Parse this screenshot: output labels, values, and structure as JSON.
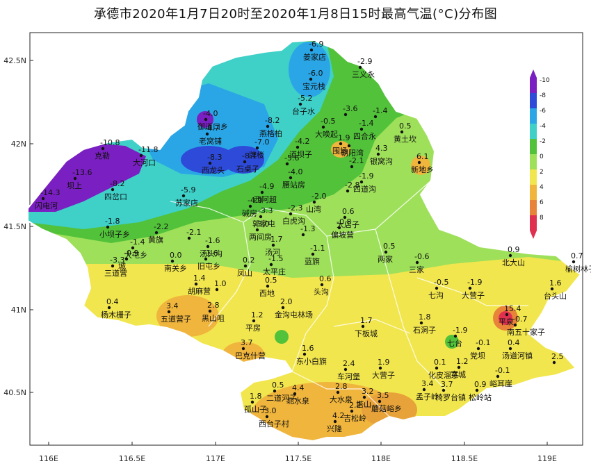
{
  "title": "承德市2020年1月7日20时至2020年1月8日15时最高气温(°C)分布图",
  "axes": {
    "lon_ticks": [
      "116E",
      "116.5E",
      "117E",
      "117.5E",
      "118E",
      "118.5E",
      "119E"
    ],
    "lat_ticks": [
      "42.5N",
      "42N",
      "41.5N",
      "41N",
      "40.5N"
    ]
  },
  "colorbar": {
    "labels": [
      "-10",
      "-8",
      "-6",
      "-4",
      "-2",
      "0",
      "2",
      "4",
      "6",
      "8"
    ],
    "colors": [
      "#7a1fc1",
      "#2e4ad8",
      "#2aa6e6",
      "#3fd0c8",
      "#52c23a",
      "#9ee05a",
      "#f2e64e",
      "#f0b53d",
      "#e8843a",
      "#e0304f"
    ]
  },
  "stations": [
    {
      "v": "-6.9",
      "n": "姜家店"
    },
    {
      "v": "-2.9",
      "n": "三义永"
    },
    {
      "v": "-6.0",
      "n": "宝元栈"
    },
    {
      "v": "-5.2",
      "n": "台子水"
    },
    {
      "v": "-3.6",
      "n": ""
    },
    {
      "v": "-1.4",
      "n": ""
    },
    {
      "v": "-0.5",
      "n": "大唤起"
    },
    {
      "v": "-1.4",
      "n": "四合永"
    },
    {
      "v": "0.5",
      "n": "黄土坎"
    },
    {
      "v": "-4.0",
      "n": "御道口乡"
    },
    {
      "v": "-4.7",
      "n": "老窝铺"
    },
    {
      "v": "-8.2",
      "n": "燕格柏"
    },
    {
      "v": "-7.0",
      "n": "牌楼"
    },
    {
      "v": "-4.2",
      "n": "道坝子"
    },
    {
      "v": "1.9",
      "n": "围场"
    },
    {
      "v": "",
      "n": "朝阳湾"
    },
    {
      "v": "4.3",
      "n": "银窝沟"
    },
    {
      "v": "-10.8",
      "n": "克勒"
    },
    {
      "v": "-11.8",
      "n": "大河口"
    },
    {
      "v": "-8.3",
      "n": "西龙头"
    },
    {
      "v": "-8.1",
      "n": "石桌子"
    },
    {
      "v": "-5.6",
      "n": ""
    },
    {
      "v": "-4.0",
      "n": "腰站房"
    },
    {
      "v": "-2.1",
      "n": ""
    },
    {
      "v": "6.1",
      "n": "新地乡"
    },
    {
      "v": "-13.6",
      "n": "坝上"
    },
    {
      "v": "-8.2",
      "n": "四岔口"
    },
    {
      "v": "-5.9",
      "n": "苏家店"
    },
    {
      "v": "-4.9",
      "n": "西阿超"
    },
    {
      "v": "-1.9",
      "n": "四道沟"
    },
    {
      "v": "-2.8",
      "n": ""
    },
    {
      "v": "-14.3",
      "n": "闪电河"
    },
    {
      "v": "-4.0",
      "n": "碱房"
    },
    {
      "v": "-3.3",
      "n": "郭家屯"
    },
    {
      "v": "-2.0",
      "n": "山湾"
    },
    {
      "v": "0.6",
      "n": "大店子"
    },
    {
      "v": "-2.3",
      "n": "白虎沟"
    },
    {
      "v": "-0.8",
      "n": "偏坡营"
    },
    {
      "v": "-3.0",
      "n": "两间房"
    },
    {
      "v": "-1.3",
      "n": ""
    },
    {
      "v": "-1.8",
      "n": "小坝子乡"
    },
    {
      "v": "-2.2",
      "n": "黄旗"
    },
    {
      "v": "-2.1",
      "n": ""
    },
    {
      "v": "-1.6",
      "n": "汤头沟"
    },
    {
      "v": "-1.4",
      "n": "大屯乡"
    },
    {
      "v": "-0.9",
      "n": "城"
    },
    {
      "v": "0.0",
      "n": "南关乡"
    },
    {
      "v": "-3.3",
      "n": "三道营"
    },
    {
      "v": "-1.6",
      "n": "旧屯乡"
    },
    {
      "v": "0.2",
      "n": "凤山"
    },
    {
      "v": "1.7",
      "n": "汤河"
    },
    {
      "v": "-1.5",
      "n": "太平庄"
    },
    {
      "v": "-1.1",
      "n": "蓝旗"
    },
    {
      "v": "0.5",
      "n": "两家"
    },
    {
      "v": "-0.6",
      "n": "三家"
    },
    {
      "v": "0.9",
      "n": "北大山"
    },
    {
      "v": "0.7",
      "n": "榆树林子"
    },
    {
      "v": "1.4",
      "n": "胡麻营"
    },
    {
      "v": "1.0",
      "n": ""
    },
    {
      "v": "0.5",
      "n": "西地"
    },
    {
      "v": "0.6",
      "n": "头沟"
    },
    {
      "v": "-0.5",
      "n": "七沟"
    },
    {
      "v": "-1.9",
      "n": "大营子"
    },
    {
      "v": "1.6",
      "n": "台头山"
    },
    {
      "v": "0.4",
      "n": "杨木栅子"
    },
    {
      "v": "3.4",
      "n": "五道营子"
    },
    {
      "v": "2.8",
      "n": "黑山咀"
    },
    {
      "v": "2.0",
      "n": "金沟屯林场"
    },
    {
      "v": "15.4",
      "n": "平泉"
    },
    {
      "v": "-0.7",
      "n": "南五十家子"
    },
    {
      "v": "1.2",
      "n": "平房"
    },
    {
      "v": "1.7",
      "n": "下板城"
    },
    {
      "v": "1.8",
      "n": "石洞子"
    },
    {
      "v": "-1.9",
      "n": "七台"
    },
    {
      "v": "3.7",
      "n": "巴克什营"
    },
    {
      "v": "1.6",
      "n": "东小白旗"
    },
    {
      "v": "1.9",
      "n": "大营子"
    },
    {
      "v": "-0.1",
      "n": "党坝"
    },
    {
      "v": "0.4",
      "n": "汤道河镇"
    },
    {
      "v": "2.5",
      "n": ""
    },
    {
      "v": "2.4",
      "n": "车河堡"
    },
    {
      "v": "0.1",
      "n": "化皮溜子"
    },
    {
      "v": "1.2",
      "n": "宽城"
    },
    {
      "v": "-0.1",
      "n": "峪耳崖"
    },
    {
      "v": "0.5",
      "n": "二道河子"
    },
    {
      "v": "4.4",
      "n": "北水泉"
    },
    {
      "v": "2.8",
      "n": "大水泉"
    },
    {
      "v": "3.2",
      "n": "塔山"
    },
    {
      "v": "3.4",
      "n": "孟子岭"
    },
    {
      "v": "1.8",
      "n": "孤山子"
    },
    {
      "v": "3.0",
      "n": "西台子村"
    },
    {
      "v": "4.2",
      "n": "兴隆"
    },
    {
      "v": "2.2",
      "n": "吉松岭"
    },
    {
      "v": "3.5",
      "n": "蘑菇峪乡"
    },
    {
      "v": "3.7",
      "n": "椅罗台镇"
    },
    {
      "v": "0.9",
      "n": "松岭站"
    }
  ]
}
